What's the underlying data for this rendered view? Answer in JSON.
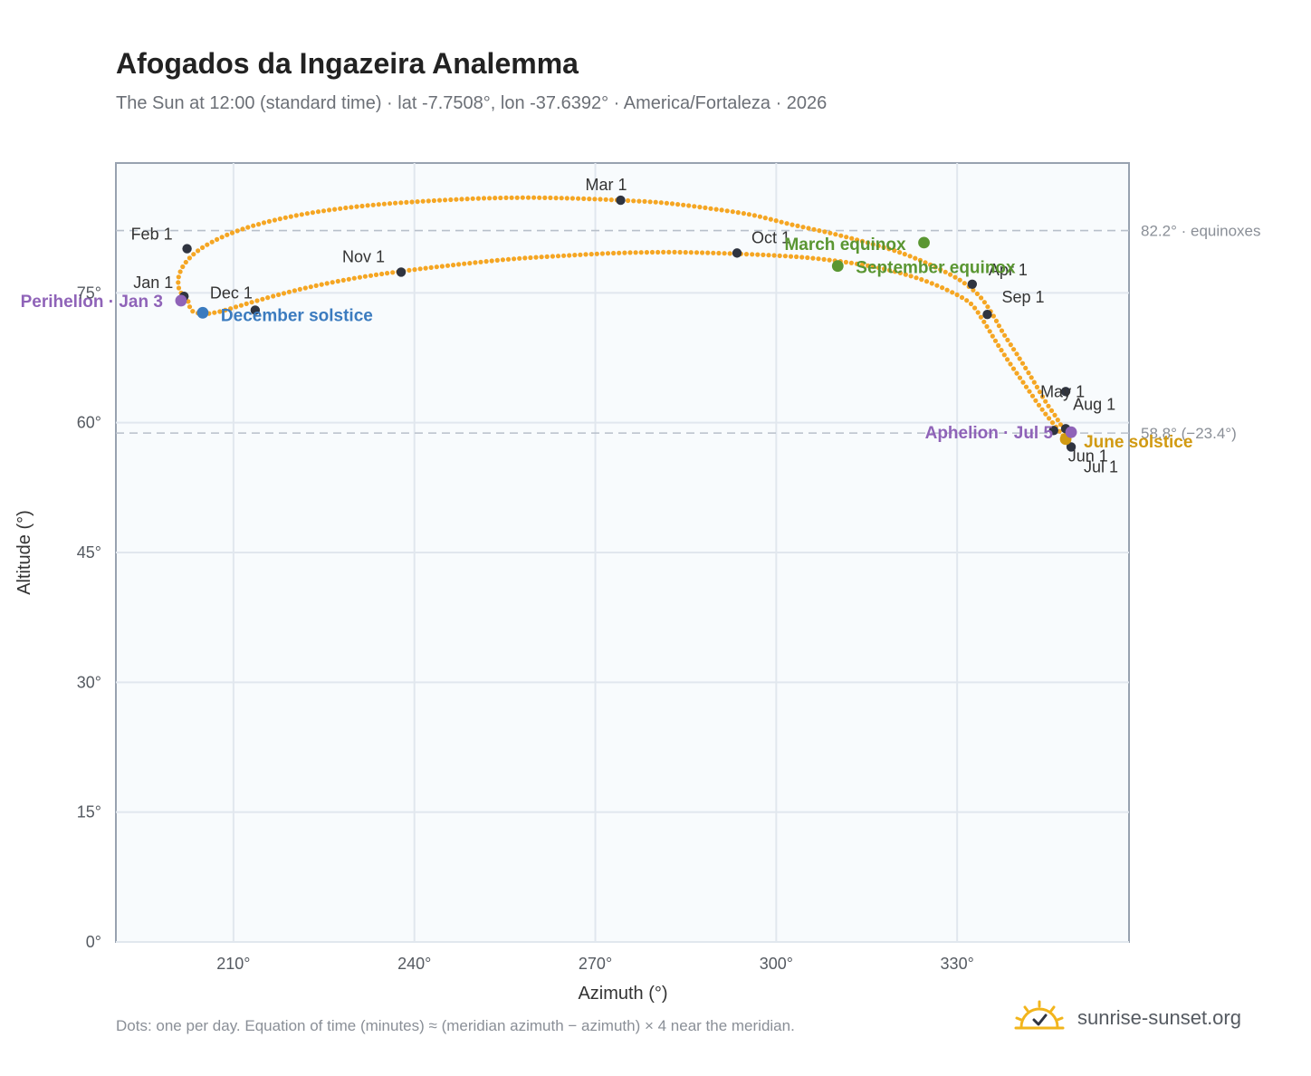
{
  "header": {
    "title": "Afogados da Ingazeira Analemma",
    "subtitle": "The Sun at 12:00 (standard time) · lat -7.7508°, lon -37.6392° · America/Fortaleza · 2026"
  },
  "footer": {
    "note": "Dots: one per day. Equation of time (minutes) ≈ (meridian azimuth − azimuth) × 4 near the meridian.",
    "brand": "sunrise-sunset.org"
  },
  "chart_data": {
    "type": "scatter",
    "xlabel": "Azimuth (°)",
    "ylabel": "Altitude (°)",
    "xlim": [
      190.5,
      358.5
    ],
    "ylim": [
      0,
      90
    ],
    "x_ticks": [
      {
        "v": 210,
        "label": "210°"
      },
      {
        "v": 240,
        "label": "240°"
      },
      {
        "v": 270,
        "label": "270°"
      },
      {
        "v": 300,
        "label": "300°"
      },
      {
        "v": 330,
        "label": "330°"
      }
    ],
    "y_ticks": [
      {
        "v": 0,
        "label": "0°"
      },
      {
        "v": 15,
        "label": "15°"
      },
      {
        "v": 30,
        "label": "30°"
      },
      {
        "v": 45,
        "label": "45°"
      },
      {
        "v": 60,
        "label": "60°"
      },
      {
        "v": 75,
        "label": "75°"
      }
    ],
    "grid": true,
    "reference_lines": [
      {
        "y": 82.2,
        "label": "82.2° · equinoxes"
      },
      {
        "y": 58.8,
        "label": "58.8° (−23.4°)"
      }
    ],
    "series": [
      {
        "key": "analemma",
        "color": "#f5a623",
        "x": [
          202.5,
          201.0,
          201.0,
          202.3,
          204.8,
          208.6,
          213.5,
          219.4,
          226.2,
          233.8,
          241.9,
          250.4,
          259.0,
          267.1,
          274.2,
          281.3,
          288.5,
          296.0,
          302.5,
          309.0,
          315.1,
          320.8,
          326.0,
          330.4,
          333.6,
          335.7,
          337.6,
          340.0,
          342.5,
          344.6,
          346.8,
          348.0,
          348.9,
          348.1,
          346.4,
          344.0,
          341.5,
          338.8,
          336.4,
          334.3,
          332.0,
          327.5,
          322.5,
          317.0,
          311.0,
          304.5,
          297.5,
          290.0,
          282.0,
          273.5,
          265.0,
          256.0,
          247.5,
          239.0,
          231.0,
          223.5,
          217.0,
          211.5,
          207.5,
          204.8,
          203.0,
          202.5
        ],
        "y": [
          74.0,
          75.4,
          77.1,
          78.7,
          80.2,
          81.6,
          82.8,
          83.8,
          84.6,
          85.2,
          85.6,
          85.9,
          86.0,
          85.9,
          85.7,
          85.4,
          84.8,
          84.0,
          82.9,
          81.9,
          80.8,
          79.6,
          78.1,
          76.5,
          74.7,
          72.7,
          70.4,
          67.8,
          65.0,
          62.5,
          60.2,
          58.6,
          57.2,
          58.0,
          59.5,
          61.6,
          64.1,
          66.8,
          69.4,
          71.8,
          73.9,
          75.6,
          76.9,
          77.9,
          78.6,
          79.1,
          79.4,
          79.6,
          79.7,
          79.6,
          79.3,
          78.9,
          78.3,
          77.6,
          76.8,
          75.8,
          74.7,
          73.6,
          72.8,
          72.6,
          73.0,
          74.0
        ]
      }
    ],
    "month_markers": [
      {
        "label": "Jan 1",
        "az": 201.8,
        "alt": 74.6
      },
      {
        "label": "Feb 1",
        "az": 202.3,
        "alt": 80.1
      },
      {
        "label": "Mar 1",
        "az": 274.2,
        "alt": 85.7
      },
      {
        "label": "Apr 1",
        "az": 332.5,
        "alt": 76.0
      },
      {
        "label": "May 1",
        "az": 348.0,
        "alt": 63.6
      },
      {
        "label": "Jun 1",
        "az": 346.0,
        "alt": 59.1
      },
      {
        "label": "Jul 1",
        "az": 348.9,
        "alt": 57.2
      },
      {
        "label": "Aug 1",
        "az": 348.0,
        "alt": 59.3
      },
      {
        "label": "Sep 1",
        "az": 335.0,
        "alt": 72.5
      },
      {
        "label": "Oct 1",
        "az": 293.5,
        "alt": 79.6
      },
      {
        "label": "Nov 1",
        "az": 237.8,
        "alt": 77.4
      },
      {
        "label": "Dec 1",
        "az": 213.6,
        "alt": 73.0
      }
    ],
    "events": [
      {
        "label": "March equinox",
        "az": 324.5,
        "alt": 80.8,
        "color": "#5a9632"
      },
      {
        "label": "September equinox",
        "az": 310.2,
        "alt": 78.1,
        "color": "#5a9632"
      },
      {
        "label": "June solstice",
        "az": 348.0,
        "alt": 58.1,
        "color": "#d19a12"
      },
      {
        "label": "December solstice",
        "az": 204.9,
        "alt": 72.7,
        "color": "#3b7bbf"
      },
      {
        "label": "Perihelion · Jan 3",
        "az": 201.3,
        "alt": 74.1,
        "color": "#8f63b8"
      },
      {
        "label": "Aphelion · Jul 5",
        "az": 348.9,
        "alt": 58.9,
        "color": "#8f63b8"
      }
    ]
  }
}
